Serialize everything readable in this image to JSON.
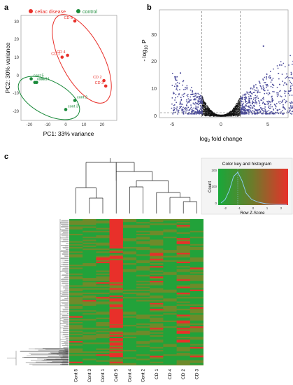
{
  "panels": {
    "a": "a",
    "b": "b",
    "c": "c"
  },
  "pca": {
    "legend": [
      {
        "label": "celiac disease",
        "color": "#e8302a"
      },
      {
        "label": "control",
        "color": "#1a8a3a"
      }
    ],
    "xlabel": "PC1: 33% variance",
    "ylabel": "PC2: 30% variance",
    "xticks": [
      "-20",
      "-10",
      "0",
      "10",
      "20"
    ],
    "yticks": [
      "30",
      "20",
      "10",
      "0",
      "-10",
      "-20"
    ],
    "colors": {
      "cd": "#e8302a",
      "control": "#1a8a3a"
    }
  },
  "volcano": {
    "xlabel_main": "log",
    "xlabel_sub": "2",
    "xlabel_rest": " fold change",
    "ylabel_main": "- log",
    "ylabel_sub": "10",
    "ylabel_rest": " P",
    "xticks": [
      "-5",
      "0",
      "5"
    ],
    "yticks": [
      "30",
      "20",
      "10",
      "0"
    ],
    "colors": {
      "ns": "#111111",
      "sig": "#4a4a9a"
    }
  },
  "heatmap": {
    "color_key": {
      "title": "Color key and histogram",
      "xlabel": "Row Z-Score",
      "ylabel": "Count",
      "xticks": [
        "-2",
        "-1",
        "0",
        "1",
        "2"
      ],
      "yticks": [
        "200",
        "100",
        "0"
      ]
    },
    "columns": [
      "Cont 5",
      "Cont 3",
      "Cont 1",
      "CeD 5",
      "Cont 4",
      "Cont 2",
      "CD 1",
      "CD 4",
      "CD 2",
      "CD 3"
    ],
    "colors": {
      "low": "#22a23a",
      "mid": "#6e8a2a",
      "high": "#e8302a"
    }
  },
  "chart_data": [
    {
      "type": "scatter",
      "xlabel": "PC1: 33% variance",
      "ylabel": "PC2: 30% variance",
      "xlim": [
        -22,
        25
      ],
      "ylim": [
        -22,
        35
      ],
      "series": [
        {
          "name": "celiac disease",
          "points": [
            {
              "label": "CD 5",
              "x": 5,
              "y": 31
            },
            {
              "label": "CD 1",
              "x": -2,
              "y": 11
            },
            {
              "label": "CD 4",
              "x": 1,
              "y": 12
            },
            {
              "label": "CD 2",
              "x": 21,
              "y": -2
            },
            {
              "label": "CD 3",
              "x": 22,
              "y": -5
            }
          ]
        },
        {
          "name": "control",
          "points": [
            {
              "label": "cont 5",
              "x": -19,
              "y": -1
            },
            {
              "label": "cont 1",
              "x": -17,
              "y": -3
            },
            {
              "label": "cont 4",
              "x": -16,
              "y": -3
            },
            {
              "label": "cont 2",
              "x": 5,
              "y": -13
            },
            {
              "label": "cont 3",
              "x": 0,
              "y": -18
            }
          ]
        }
      ]
    },
    {
      "type": "scatter",
      "xlabel": "log2 fold change",
      "ylabel": "- log10 P",
      "xlim": [
        -6,
        9
      ],
      "ylim": [
        0,
        35
      ],
      "thresholds": {
        "fc": [
          -2,
          2
        ],
        "p": 1.3
      }
    }
  ]
}
